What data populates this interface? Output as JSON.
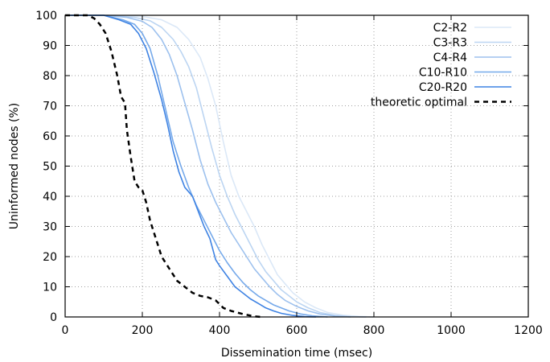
{
  "chart_data": {
    "type": "line",
    "title": "",
    "xlabel": "Dissemination time (msec)",
    "ylabel": "Uninformed nodes (%)",
    "xlim": [
      0,
      1200
    ],
    "ylim": [
      0,
      100
    ],
    "xticks": [
      0,
      200,
      400,
      600,
      800,
      1000,
      1200
    ],
    "yticks": [
      0,
      10,
      20,
      30,
      40,
      50,
      60,
      70,
      80,
      90,
      100
    ],
    "grid": "dotted",
    "legend_position": "top-right",
    "series": [
      {
        "name": "C2-R2",
        "color": "#dbe8f7",
        "dash": "solid",
        "points": [
          [
            0,
            100
          ],
          [
            120,
            100
          ],
          [
            200,
            99.6
          ],
          [
            250,
            98.5
          ],
          [
            290,
            96
          ],
          [
            320,
            92
          ],
          [
            350,
            86
          ],
          [
            370,
            79
          ],
          [
            390,
            70
          ],
          [
            410,
            58
          ],
          [
            430,
            47
          ],
          [
            450,
            40
          ],
          [
            470,
            35
          ],
          [
            490,
            30
          ],
          [
            510,
            24
          ],
          [
            530,
            19
          ],
          [
            550,
            14
          ],
          [
            570,
            11
          ],
          [
            590,
            8
          ],
          [
            620,
            5
          ],
          [
            650,
            3
          ],
          [
            680,
            1.5
          ],
          [
            720,
            0.6
          ],
          [
            760,
            0.2
          ],
          [
            800,
            0
          ]
        ]
      },
      {
        "name": "C3-R3",
        "color": "#bcd5f2",
        "dash": "solid",
        "points": [
          [
            0,
            100
          ],
          [
            110,
            100
          ],
          [
            180,
            99.3
          ],
          [
            220,
            98.2
          ],
          [
            250,
            96
          ],
          [
            280,
            92
          ],
          [
            300,
            88
          ],
          [
            320,
            83
          ],
          [
            340,
            76
          ],
          [
            360,
            66
          ],
          [
            380,
            56
          ],
          [
            400,
            47
          ],
          [
            420,
            40
          ],
          [
            440,
            34
          ],
          [
            460,
            29
          ],
          [
            480,
            24
          ],
          [
            500,
            19
          ],
          [
            520,
            15
          ],
          [
            540,
            12
          ],
          [
            560,
            9
          ],
          [
            580,
            7
          ],
          [
            600,
            5
          ],
          [
            630,
            3
          ],
          [
            660,
            1.5
          ],
          [
            700,
            0.5
          ],
          [
            740,
            0.1
          ],
          [
            780,
            0
          ]
        ]
      },
      {
        "name": "C4-R4",
        "color": "#9dc1ee",
        "dash": "solid",
        "points": [
          [
            0,
            100
          ],
          [
            100,
            100
          ],
          [
            160,
            99.3
          ],
          [
            200,
            98
          ],
          [
            225,
            96
          ],
          [
            250,
            92
          ],
          [
            270,
            87
          ],
          [
            290,
            80
          ],
          [
            310,
            71
          ],
          [
            330,
            62
          ],
          [
            350,
            52
          ],
          [
            370,
            44
          ],
          [
            390,
            38
          ],
          [
            410,
            33
          ],
          [
            430,
            28
          ],
          [
            450,
            24
          ],
          [
            470,
            20
          ],
          [
            490,
            16
          ],
          [
            510,
            13
          ],
          [
            530,
            10
          ],
          [
            550,
            7.5
          ],
          [
            570,
            5.5
          ],
          [
            600,
            3.5
          ],
          [
            630,
            2
          ],
          [
            660,
            1
          ],
          [
            700,
            0.3
          ],
          [
            740,
            0
          ]
        ]
      },
      {
        "name": "C10-R10",
        "color": "#75a9ea",
        "dash": "solid",
        "points": [
          [
            0,
            100
          ],
          [
            100,
            100
          ],
          [
            150,
            98.5
          ],
          [
            180,
            97
          ],
          [
            200,
            94
          ],
          [
            220,
            89
          ],
          [
            240,
            80
          ],
          [
            260,
            69
          ],
          [
            280,
            58
          ],
          [
            300,
            50
          ],
          [
            320,
            43
          ],
          [
            340,
            37
          ],
          [
            360,
            32
          ],
          [
            380,
            27
          ],
          [
            400,
            22
          ],
          [
            420,
            18
          ],
          [
            440,
            14.5
          ],
          [
            460,
            11.5
          ],
          [
            480,
            9
          ],
          [
            500,
            7
          ],
          [
            520,
            5.5
          ],
          [
            540,
            4
          ],
          [
            560,
            3
          ],
          [
            580,
            2
          ],
          [
            610,
            1
          ],
          [
            640,
            0.4
          ],
          [
            680,
            0
          ]
        ]
      },
      {
        "name": "C20-R20",
        "color": "#3f83e3",
        "dash": "solid",
        "points": [
          [
            0,
            100
          ],
          [
            100,
            100
          ],
          [
            140,
            98.5
          ],
          [
            170,
            97
          ],
          [
            190,
            94
          ],
          [
            210,
            89
          ],
          [
            230,
            81
          ],
          [
            250,
            72
          ],
          [
            265,
            64
          ],
          [
            280,
            55
          ],
          [
            295,
            48
          ],
          [
            310,
            43
          ],
          [
            330,
            40
          ],
          [
            345,
            35
          ],
          [
            360,
            30
          ],
          [
            375,
            26
          ],
          [
            390,
            19
          ],
          [
            400,
            17
          ],
          [
            420,
            13.5
          ],
          [
            440,
            10
          ],
          [
            460,
            8
          ],
          [
            480,
            6
          ],
          [
            500,
            4.5
          ],
          [
            520,
            3
          ],
          [
            540,
            2
          ],
          [
            560,
            1.2
          ],
          [
            590,
            0.5
          ],
          [
            620,
            0.1
          ],
          [
            650,
            0
          ]
        ]
      },
      {
        "name": "theoretic optimal",
        "color": "#000000",
        "dash": "dashed",
        "points": [
          [
            0,
            100
          ],
          [
            60,
            100
          ],
          [
            75,
            99
          ],
          [
            90,
            97
          ],
          [
            105,
            94
          ],
          [
            120,
            88
          ],
          [
            135,
            80
          ],
          [
            145,
            73
          ],
          [
            155,
            71
          ],
          [
            160,
            62
          ],
          [
            170,
            53
          ],
          [
            180,
            45
          ],
          [
            190,
            43
          ],
          [
            200,
            42
          ],
          [
            210,
            38
          ],
          [
            220,
            32
          ],
          [
            235,
            26
          ],
          [
            250,
            20
          ],
          [
            270,
            16
          ],
          [
            290,
            12
          ],
          [
            310,
            10
          ],
          [
            330,
            8
          ],
          [
            350,
            7
          ],
          [
            370,
            6.5
          ],
          [
            390,
            5.5
          ],
          [
            410,
            3
          ],
          [
            430,
            2
          ],
          [
            460,
            1
          ],
          [
            490,
            0.2
          ],
          [
            510,
            0
          ]
        ]
      }
    ]
  }
}
